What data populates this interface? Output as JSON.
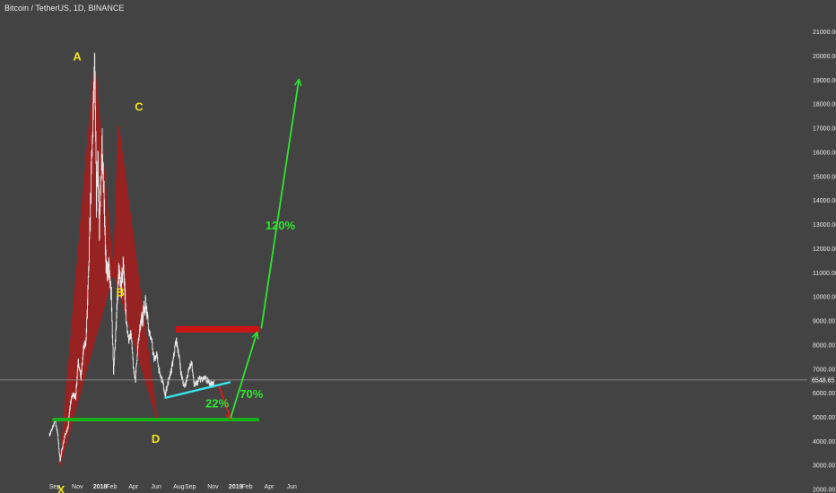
{
  "header": {
    "title": "Bitcoin / TetherUS, 1D, BINANCE"
  },
  "chart_data": {
    "type": "line",
    "title": "Bitcoin / TetherUS, 1D, BINANCE",
    "ylim": [
      1800,
      21000
    ],
    "y_ticks": [
      2000,
      3000,
      4000,
      5000,
      6000,
      7000,
      8000,
      9000,
      10000,
      11000,
      12000,
      13000,
      14000,
      15000,
      16000,
      17000,
      18000,
      19000,
      20000,
      21000
    ],
    "y_tick_labels": [
      "2000.00",
      "3000.00",
      "4000.00",
      "5000.00",
      "6000.00",
      "7000.00",
      "8000.00",
      "9000.00",
      "10000.00",
      "11000.00",
      "12000.00",
      "13000.00",
      "14000.00",
      "15000.00",
      "16000.00",
      "17000.00",
      "18000.00",
      "19000.00",
      "20000.00",
      "21000.00"
    ],
    "x_ticks": [
      {
        "label": "Sep",
        "date": "2017-09-01",
        "bold": false
      },
      {
        "label": "Nov",
        "date": "2017-11-01",
        "bold": false
      },
      {
        "label": "2018",
        "date": "2018-01-01",
        "bold": true
      },
      {
        "label": "Feb",
        "date": "2018-02-01",
        "bold": false
      },
      {
        "label": "Apr",
        "date": "2018-04-01",
        "bold": false
      },
      {
        "label": "Jun",
        "date": "2018-06-01",
        "bold": false
      },
      {
        "label": "Aug",
        "date": "2018-08-01",
        "bold": false
      },
      {
        "label": "Sep",
        "date": "2018-09-01",
        "bold": false
      },
      {
        "label": "Nov",
        "date": "2018-11-01",
        "bold": false
      },
      {
        "label": "2019",
        "date": "2019-01-01",
        "bold": true
      },
      {
        "label": "Feb",
        "date": "2019-02-01",
        "bold": false
      },
      {
        "label": "Apr",
        "date": "2019-04-01",
        "bold": false
      },
      {
        "label": "Jun",
        "date": "2019-06-01",
        "bold": false
      }
    ],
    "current_price": 6548.65,
    "current_price_label": "6548.65",
    "series": [
      {
        "values": [
          [
            "2017-08-18",
            4300
          ],
          [
            "2017-08-25",
            4500
          ],
          [
            "2017-09-01",
            4900
          ],
          [
            "2017-09-08",
            4400
          ],
          [
            "2017-09-15",
            3200
          ],
          [
            "2017-09-22",
            3800
          ],
          [
            "2017-09-29",
            4300
          ],
          [
            "2017-10-06",
            4500
          ],
          [
            "2017-10-13",
            5600
          ],
          [
            "2017-10-20",
            6000
          ],
          [
            "2017-10-27",
            5800
          ],
          [
            "2017-11-03",
            7400
          ],
          [
            "2017-11-10",
            6600
          ],
          [
            "2017-11-17",
            7800
          ],
          [
            "2017-11-24",
            8200
          ],
          [
            "2017-12-01",
            11000
          ],
          [
            "2017-12-08",
            15000
          ],
          [
            "2017-12-12",
            17000
          ],
          [
            "2017-12-17",
            19700
          ],
          [
            "2017-12-22",
            14000
          ],
          [
            "2017-12-26",
            16000
          ],
          [
            "2017-12-30",
            12500
          ],
          [
            "2018-01-06",
            16500
          ],
          [
            "2018-01-12",
            14000
          ],
          [
            "2018-01-17",
            11000
          ],
          [
            "2018-01-24",
            11200
          ],
          [
            "2018-01-31",
            10000
          ],
          [
            "2018-02-06",
            6900
          ],
          [
            "2018-02-13",
            8800
          ],
          [
            "2018-02-20",
            11000
          ],
          [
            "2018-02-26",
            10300
          ],
          [
            "2018-03-05",
            11400
          ],
          [
            "2018-03-12",
            9000
          ],
          [
            "2018-03-18",
            8200
          ],
          [
            "2018-03-25",
            8500
          ],
          [
            "2018-04-01",
            6900
          ],
          [
            "2018-04-06",
            6600
          ],
          [
            "2018-04-12",
            7900
          ],
          [
            "2018-04-20",
            8900
          ],
          [
            "2018-04-26",
            9300
          ],
          [
            "2018-05-05",
            9800
          ],
          [
            "2018-05-12",
            8600
          ],
          [
            "2018-05-19",
            8200
          ],
          [
            "2018-05-26",
            7400
          ],
          [
            "2018-06-02",
            7600
          ],
          [
            "2018-06-10",
            6800
          ],
          [
            "2018-06-18",
            6500
          ],
          [
            "2018-06-24",
            5900
          ],
          [
            "2018-07-01",
            6350
          ],
          [
            "2018-07-08",
            6700
          ],
          [
            "2018-07-16",
            7300
          ],
          [
            "2018-07-24",
            8200
          ],
          [
            "2018-07-31",
            7700
          ],
          [
            "2018-08-07",
            6800
          ],
          [
            "2018-08-14",
            6300
          ],
          [
            "2018-08-21",
            6500
          ],
          [
            "2018-08-28",
            7000
          ],
          [
            "2018-09-04",
            7300
          ],
          [
            "2018-09-11",
            6300
          ],
          [
            "2018-09-18",
            6400
          ],
          [
            "2018-09-25",
            6600
          ],
          [
            "2018-10-02",
            6550
          ],
          [
            "2018-10-09",
            6620
          ],
          [
            "2018-10-16",
            6500
          ],
          [
            "2018-10-23",
            6450
          ],
          [
            "2018-10-31",
            6350
          ],
          [
            "2018-11-05",
            6450
          ]
        ]
      }
    ],
    "annotations": {
      "points": [
        {
          "label": "X",
          "date": "2017-09-15",
          "value": 2980
        },
        {
          "label": "A",
          "date": "2017-12-17",
          "value": 19700
        },
        {
          "label": "B",
          "date": "2018-02-06",
          "value": 11000
        },
        {
          "label": "C",
          "date": "2018-02-20",
          "value": 17100
        },
        {
          "label": "D",
          "date": "2018-06-03",
          "value": 4950
        }
      ],
      "percentages": [
        "22%",
        "70%",
        "120%"
      ],
      "levels": [
        {
          "name": "resistance",
          "from": "2018-07-24",
          "to": "2019-03-07",
          "value": 8650,
          "color": "#cc1414"
        },
        {
          "name": "support",
          "from": "2017-08-26",
          "to": "2019-03-05",
          "value": 4900,
          "color": "#17b217"
        },
        {
          "name": "trendline",
          "from": "2018-06-24",
          "to": "2018-12-18",
          "value_from": 5800,
          "value_to": 6460,
          "color": "#37e6ee"
        }
      ]
    }
  },
  "colors": {
    "background": "#434343",
    "candles": "#e8e8e8",
    "pattern_fill": "#b01a1a",
    "resistance": "#cc1414",
    "support": "#17b217",
    "trendline": "#37e6ee",
    "arrow_red": "#e01818",
    "arrow_green": "#2ee62e",
    "labels": "#f0e020"
  }
}
